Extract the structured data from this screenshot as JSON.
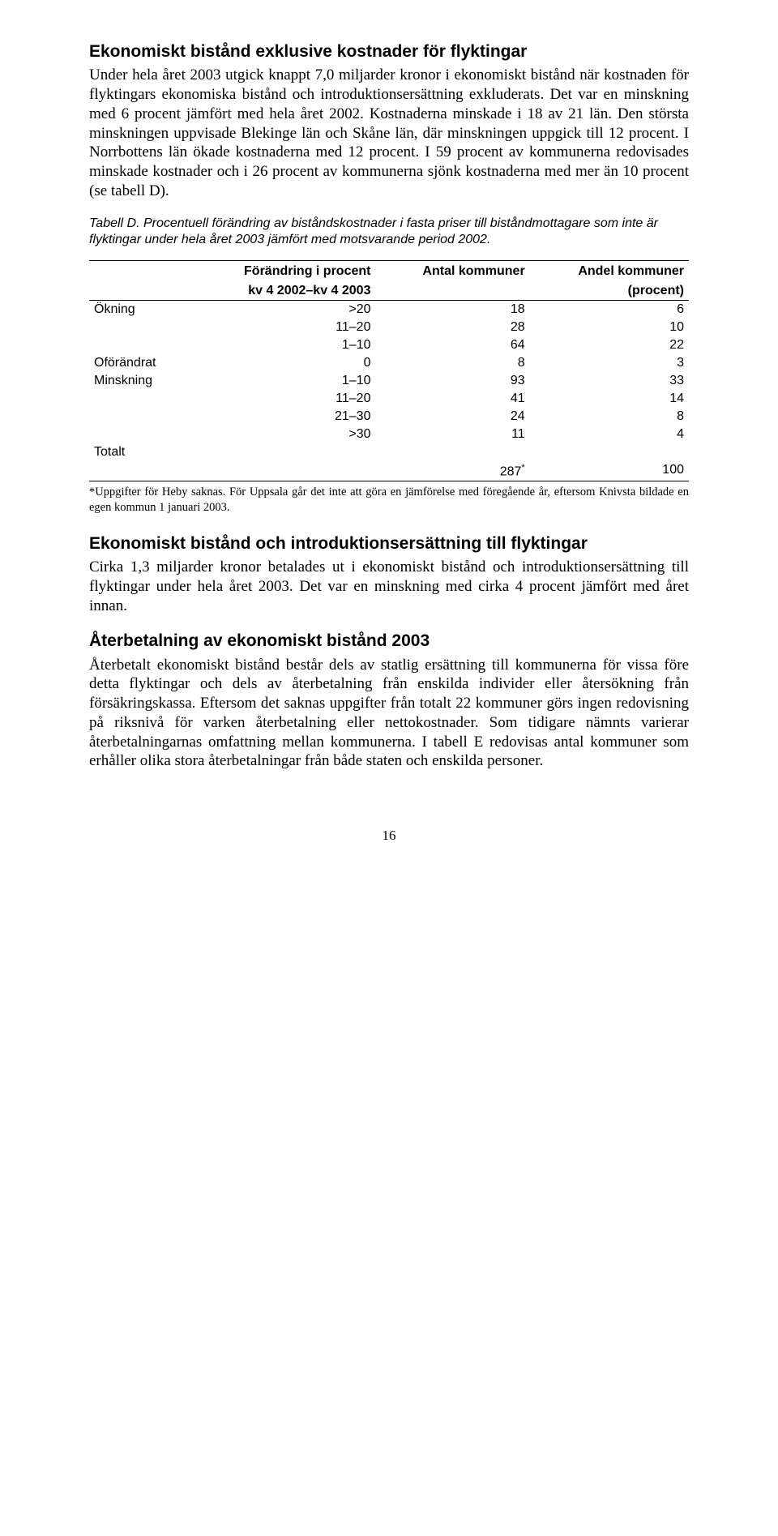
{
  "section1": {
    "heading": "Ekonomiskt bistånd exklusive kostnader för flyktingar",
    "paragraph": "Under hela året 2003 utgick knappt 7,0 miljarder kronor i ekonomiskt bistånd när kostnaden för flyktingars ekonomiska bistånd och introduktionsersättning exkluderats. Det var en minskning med 6 procent jämfört med hela året 2002. Kostnaderna minskade i 18 av 21 län. Den största minskningen uppvisade Blekinge län och Skåne län, där minskningen uppgick till 12 procent. I Norrbottens län ökade kostnaderna med 12 procent. I 59 procent av kommunerna redovisades minskade kostnader och i 26 procent av kommunerna sjönk kostnaderna med mer än 10 procent (se tabell D)."
  },
  "tableD": {
    "caption": "Tabell D. Procentuell förändring av biståndskostnader i fasta priser till biståndmottagare som inte är flyktingar under hela året 2003 jämfört med motsvarande period 2002.",
    "headers": {
      "col1": "",
      "col2a": "Förändring i procent",
      "col2b": "kv 4 2002–kv 4 2003",
      "col3": "Antal kommuner",
      "col4a": "Andel kommuner",
      "col4b": "(procent)"
    },
    "groups": {
      "okning": "Ökning",
      "oforandrat": "Oförändrat",
      "minskning": "Minskning",
      "totalt": "Totalt"
    },
    "rows": {
      "r1": {
        "label": ">20",
        "antal": "18",
        "andel": "6"
      },
      "r2": {
        "label": "11–20",
        "antal": "28",
        "andel": "10"
      },
      "r3": {
        "label": "1–10",
        "antal": "64",
        "andel": "22"
      },
      "r4": {
        "label": "0",
        "antal": "8",
        "andel": "3"
      },
      "r5": {
        "label": "1–10",
        "antal": "93",
        "andel": "33"
      },
      "r6": {
        "label": "11–20",
        "antal": "41",
        "andel": "14"
      },
      "r7": {
        "label": "21–30",
        "antal": "24",
        "andel": "8"
      },
      "r8": {
        "label": ">30",
        "antal": "11",
        "andel": "4"
      },
      "total": {
        "antal": "287",
        "sup": "*",
        "andel": "100"
      }
    },
    "footnote": "*Uppgifter för Heby saknas. För Uppsala går det inte att göra en jämförelse med föregående år, eftersom Knivsta bildade en egen kommun 1 januari 2003."
  },
  "section2": {
    "heading": "Ekonomiskt bistånd och introduktionsersättning till flyktingar",
    "paragraph": "Cirka 1,3 miljarder kronor betalades ut i ekonomiskt bistånd och introduktionsersättning till flyktingar under hela året 2003. Det var en minskning med cirka 4 procent jämfört med året innan."
  },
  "section3": {
    "heading": "Återbetalning av ekonomiskt bistånd 2003",
    "paragraph": "Återbetalt ekonomiskt bistånd består dels av statlig ersättning till kommunerna för vissa före detta flyktingar och dels av återbetalning från enskilda individer eller återsökning från försäkringskassa. Eftersom det saknas uppgifter från totalt 22 kommuner görs ingen redovisning på riksnivå för varken återbetalning eller nettokostnader. Som tidigare nämnts varierar återbetalningarnas omfattning mellan kommunerna. I tabell E redovisas antal kommuner som erhåller olika stora återbetalningar från både staten och enskilda personer."
  },
  "page_number": "16"
}
